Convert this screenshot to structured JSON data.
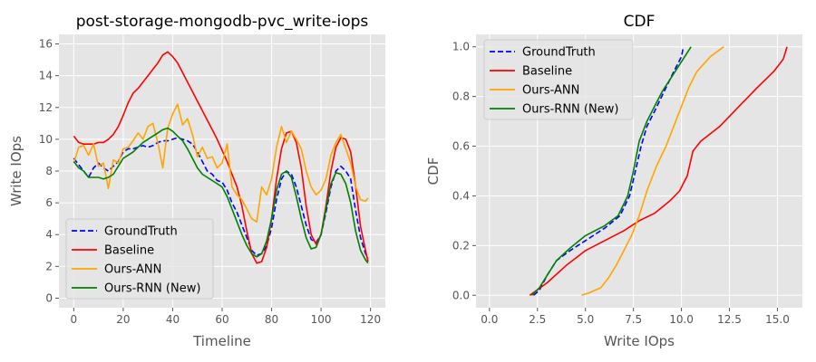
{
  "chart_data": [
    {
      "type": "line",
      "title": "post-storage-mongodb-pvc_write-iops",
      "xlabel": "Timeline",
      "ylabel": "Write IOps",
      "xlim": [
        -6,
        126
      ],
      "ylim": [
        -0.6,
        16.6
      ],
      "xticks": [
        0,
        20,
        40,
        60,
        80,
        100,
        120
      ],
      "yticks": [
        0,
        2,
        4,
        6,
        8,
        10,
        12,
        14,
        16
      ],
      "grid": true,
      "legend": "lower-left",
      "series": [
        {
          "name": "GroundTruth",
          "color": "#0000ff",
          "dash": "6,3",
          "x": [
            0,
            2,
            4,
            6,
            8,
            10,
            12,
            14,
            16,
            18,
            20,
            22,
            24,
            26,
            28,
            30,
            32,
            34,
            36,
            38,
            40,
            42,
            44,
            46,
            48,
            50,
            52,
            54,
            56,
            58,
            60,
            62,
            64,
            66,
            68,
            70,
            72,
            74,
            76,
            78,
            80,
            82,
            84,
            86,
            88,
            90,
            92,
            94,
            96,
            98,
            100,
            102,
            104,
            106,
            108,
            110,
            112,
            114,
            116,
            118,
            119
          ],
          "y": [
            8.8,
            8.4,
            8.0,
            7.6,
            8.2,
            8.5,
            8.2,
            8.0,
            8.3,
            8.6,
            9.2,
            9.4,
            9.4,
            9.5,
            9.6,
            9.5,
            9.6,
            9.8,
            9.9,
            9.9,
            10.0,
            10.1,
            10.0,
            9.9,
            9.7,
            9.2,
            8.6,
            8.0,
            7.8,
            7.4,
            7.3,
            6.8,
            6.0,
            5.4,
            4.6,
            3.8,
            3.0,
            2.7,
            2.8,
            3.3,
            4.4,
            6.2,
            7.5,
            8.0,
            7.8,
            7.0,
            5.8,
            4.6,
            3.7,
            3.5,
            4.0,
            5.4,
            7.0,
            8.0,
            8.3,
            8.0,
            7.5,
            5.5,
            3.8,
            2.8,
            2.5
          ]
        },
        {
          "name": "Baseline",
          "color": "#ff0000",
          "dash": "",
          "x": [
            0,
            2,
            4,
            6,
            8,
            10,
            12,
            14,
            16,
            18,
            20,
            22,
            24,
            26,
            28,
            30,
            32,
            34,
            36,
            38,
            40,
            42,
            44,
            46,
            48,
            50,
            52,
            54,
            56,
            58,
            60,
            62,
            64,
            66,
            68,
            70,
            72,
            74,
            76,
            78,
            80,
            82,
            84,
            86,
            88,
            90,
            92,
            94,
            96,
            98,
            100,
            102,
            104,
            106,
            108,
            110,
            112,
            114,
            116,
            118,
            119
          ],
          "y": [
            10.2,
            9.8,
            9.7,
            9.7,
            9.7,
            9.8,
            9.8,
            10.0,
            10.3,
            10.8,
            11.5,
            12.3,
            12.9,
            13.2,
            13.6,
            14.0,
            14.4,
            14.8,
            15.3,
            15.5,
            15.2,
            14.8,
            14.2,
            13.6,
            13.0,
            12.4,
            11.8,
            11.2,
            10.6,
            10.0,
            9.3,
            8.6,
            7.8,
            7.0,
            5.8,
            4.2,
            2.8,
            2.2,
            2.3,
            3.2,
            5.0,
            7.5,
            9.4,
            10.4,
            10.5,
            9.8,
            8.2,
            5.8,
            4.0,
            3.4,
            4.0,
            5.8,
            8.0,
            9.5,
            10.1,
            10.0,
            9.2,
            7.0,
            4.5,
            3.0,
            2.3
          ]
        },
        {
          "name": "Ours-ANN",
          "color": "#ffa500",
          "dash": "",
          "x": [
            0,
            2,
            4,
            6,
            8,
            10,
            12,
            14,
            16,
            18,
            20,
            22,
            24,
            26,
            28,
            30,
            32,
            34,
            36,
            38,
            40,
            42,
            44,
            46,
            48,
            50,
            52,
            54,
            56,
            58,
            60,
            62,
            64,
            66,
            68,
            70,
            72,
            74,
            76,
            78,
            80,
            82,
            84,
            86,
            88,
            90,
            92,
            94,
            96,
            98,
            100,
            102,
            104,
            106,
            108,
            110,
            112,
            114,
            116,
            118,
            119
          ],
          "y": [
            8.5,
            9.5,
            9.6,
            9.0,
            9.7,
            8.3,
            8.5,
            6.9,
            8.7,
            8.5,
            9.4,
            9.5,
            9.9,
            10.4,
            10.0,
            10.8,
            11.0,
            9.8,
            8.2,
            10.7,
            11.6,
            12.2,
            10.9,
            11.3,
            10.3,
            8.9,
            9.5,
            8.8,
            8.9,
            8.2,
            8.5,
            9.7,
            7.0,
            6.5,
            6.2,
            5.6,
            5.0,
            4.8,
            7.0,
            6.5,
            7.5,
            9.5,
            10.8,
            9.8,
            10.5,
            10.0,
            9.4,
            8.0,
            7.0,
            6.5,
            6.8,
            7.5,
            9.0,
            9.8,
            10.3,
            9.4,
            8.5,
            7.0,
            6.2,
            6.1,
            6.3
          ]
        },
        {
          "name": "Ours-RNN (New)",
          "color": "#008000",
          "dash": "",
          "x": [
            0,
            2,
            4,
            6,
            8,
            10,
            12,
            14,
            16,
            18,
            20,
            22,
            24,
            26,
            28,
            30,
            32,
            34,
            36,
            38,
            40,
            42,
            44,
            46,
            48,
            50,
            52,
            54,
            56,
            58,
            60,
            62,
            64,
            66,
            68,
            70,
            72,
            74,
            76,
            78,
            80,
            82,
            84,
            86,
            88,
            90,
            92,
            94,
            96,
            98,
            100,
            102,
            104,
            106,
            108,
            110,
            112,
            114,
            116,
            118,
            119
          ],
          "y": [
            8.6,
            8.2,
            8.0,
            7.6,
            7.6,
            7.6,
            7.5,
            7.6,
            7.8,
            8.3,
            8.8,
            9.0,
            9.2,
            9.5,
            9.8,
            10.0,
            10.2,
            10.4,
            10.6,
            10.7,
            10.5,
            10.2,
            9.9,
            9.4,
            8.8,
            8.2,
            7.8,
            7.6,
            7.4,
            7.2,
            7.0,
            6.4,
            5.6,
            4.8,
            4.0,
            3.3,
            2.8,
            2.6,
            2.8,
            3.6,
            5.0,
            6.8,
            7.8,
            8.0,
            7.6,
            6.4,
            5.0,
            3.8,
            3.1,
            3.2,
            4.0,
            5.6,
            7.2,
            7.9,
            7.8,
            7.2,
            6.0,
            4.2,
            3.0,
            2.4,
            2.2
          ]
        }
      ]
    },
    {
      "type": "line",
      "title": "CDF",
      "xlabel": "Write IOps",
      "ylabel": "CDF",
      "xlim": [
        -0.7,
        16.3
      ],
      "ylim": [
        -0.05,
        1.05
      ],
      "xticks": [
        0.0,
        2.5,
        5.0,
        7.5,
        10.0,
        12.5,
        15.0
      ],
      "xtick_labels": [
        "0.0",
        "2.5",
        "5.0",
        "7.5",
        "10.0",
        "12.5",
        "15.0"
      ],
      "yticks": [
        0.0,
        0.2,
        0.4,
        0.6,
        0.8,
        1.0
      ],
      "ytick_labels": [
        "0.0",
        "0.2",
        "0.4",
        "0.6",
        "0.8",
        "1.0"
      ],
      "grid": true,
      "legend": "upper-left",
      "series": [
        {
          "name": "GroundTruth",
          "color": "#0000ff",
          "dash": "6,3",
          "x": [
            2.3,
            2.6,
            3.0,
            3.5,
            4.2,
            5.0,
            6.0,
            6.8,
            7.3,
            7.6,
            7.9,
            8.2,
            8.6,
            9.1,
            9.6,
            10.0,
            10.1
          ],
          "y": [
            0.0,
            0.02,
            0.08,
            0.14,
            0.18,
            0.22,
            0.27,
            0.32,
            0.4,
            0.5,
            0.6,
            0.68,
            0.74,
            0.82,
            0.9,
            0.96,
            1.0
          ]
        },
        {
          "name": "Baseline",
          "color": "#ff0000",
          "dash": "",
          "x": [
            2.1,
            3.0,
            4.0,
            5.0,
            6.0,
            7.0,
            7.8,
            8.6,
            9.4,
            9.9,
            10.3,
            10.6,
            11.0,
            12.0,
            13.0,
            14.0,
            14.8,
            15.3,
            15.5
          ],
          "y": [
            0.0,
            0.05,
            0.12,
            0.18,
            0.22,
            0.26,
            0.3,
            0.33,
            0.38,
            0.42,
            0.48,
            0.58,
            0.62,
            0.68,
            0.76,
            0.84,
            0.9,
            0.95,
            1.0
          ]
        },
        {
          "name": "Ours-ANN",
          "color": "#ffa500",
          "dash": "",
          "x": [
            4.8,
            5.2,
            5.8,
            6.2,
            6.6,
            7.0,
            7.4,
            7.8,
            8.2,
            8.7,
            9.2,
            9.6,
            10.0,
            10.4,
            10.8,
            11.5,
            12.2
          ],
          "y": [
            0.0,
            0.01,
            0.03,
            0.07,
            0.12,
            0.18,
            0.24,
            0.32,
            0.42,
            0.52,
            0.6,
            0.68,
            0.76,
            0.84,
            0.9,
            0.96,
            1.0
          ]
        },
        {
          "name": "Ours-RNN (New)",
          "color": "#008000",
          "dash": "",
          "x": [
            2.2,
            2.6,
            3.0,
            3.5,
            4.2,
            5.0,
            6.0,
            6.7,
            7.2,
            7.5,
            7.8,
            8.2,
            8.6,
            9.0,
            9.5,
            10.0,
            10.5
          ],
          "y": [
            0.0,
            0.03,
            0.08,
            0.14,
            0.19,
            0.24,
            0.28,
            0.32,
            0.4,
            0.5,
            0.62,
            0.7,
            0.76,
            0.82,
            0.88,
            0.94,
            1.0
          ]
        }
      ]
    }
  ]
}
